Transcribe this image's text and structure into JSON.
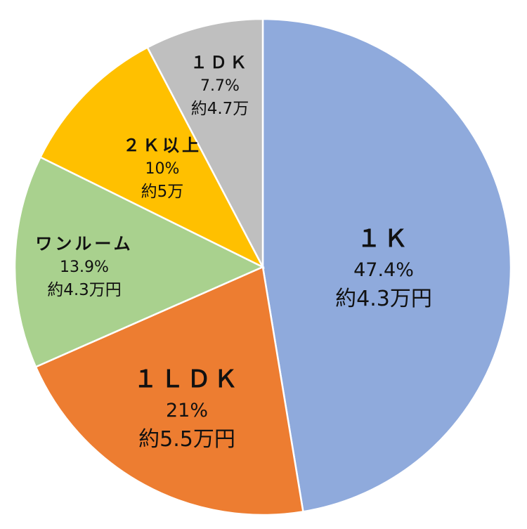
{
  "chart_data": {
    "type": "pie",
    "title": "",
    "start": "top, clockwise",
    "slices": [
      {
        "label": "１Ｋ",
        "value": 47.4,
        "percent_label": "47.4%",
        "amount_label": "約4.3万円",
        "color": "#8FAADC"
      },
      {
        "label": "１ＬＤＫ",
        "value": 21,
        "percent_label": "21%",
        "amount_label": "約5.5万円",
        "color": "#ED7D31"
      },
      {
        "label": "ワンルーム",
        "value": 13.9,
        "percent_label": "13.9%",
        "amount_label": "約4.3万円",
        "color": "#A9D18E"
      },
      {
        "label": "２Ｋ以上",
        "value": 10,
        "percent_label": "10%",
        "amount_label": "約5万",
        "color": "#FFC000"
      },
      {
        "label": "１ＤＫ",
        "value": 7.7,
        "percent_label": "7.7%",
        "amount_label": "約4.7万",
        "color": "#BFBFBF"
      }
    ]
  }
}
